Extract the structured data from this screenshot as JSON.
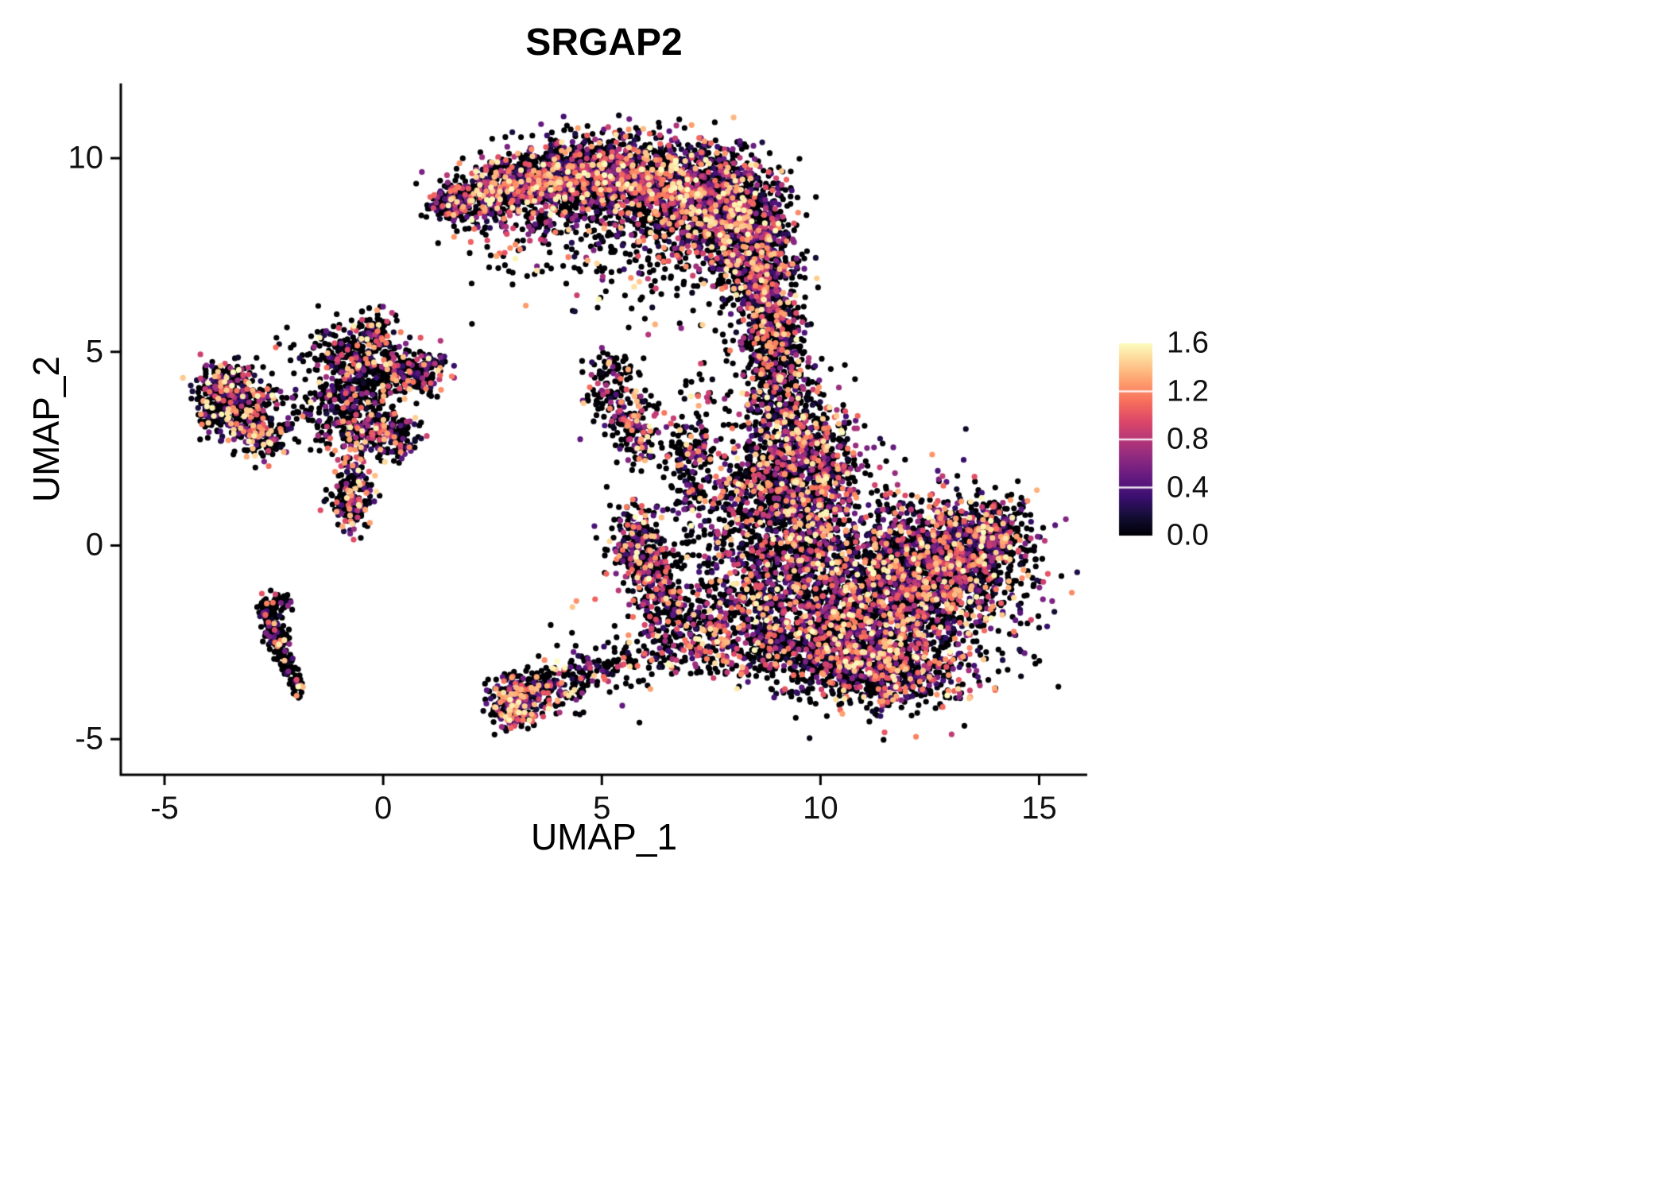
{
  "chart_data": {
    "type": "scatter",
    "title": "SRGAP2",
    "xlabel": "UMAP_1",
    "ylabel": "UMAP_2",
    "xlim": [
      -6,
      16.1
    ],
    "ylim": [
      -5.92,
      11.93
    ],
    "grid": false,
    "x_ticks": [
      {
        "label": "-5",
        "value": -5
      },
      {
        "label": "0",
        "value": 0
      },
      {
        "label": "5",
        "value": 5
      },
      {
        "label": "10",
        "value": 10
      },
      {
        "label": "15",
        "value": 15
      }
    ],
    "y_ticks": [
      {
        "label": "-5",
        "value": -5
      },
      {
        "label": "0",
        "value": 0
      },
      {
        "label": "5",
        "value": 5
      },
      {
        "label": "10",
        "value": 10
      }
    ],
    "legend": {
      "position": "right",
      "min": 0,
      "max": 1.6,
      "ticks": [
        {
          "label": "1.6",
          "value": 1.6
        },
        {
          "label": "1.2",
          "value": 1.2
        },
        {
          "label": "0.8",
          "value": 0.8
        },
        {
          "label": "0.4",
          "value": 0.4
        },
        {
          "label": "0.0",
          "value": 0.0
        }
      ],
      "colormap": "magma",
      "stops": [
        "#000004",
        "#140e36",
        "#3b0f70",
        "#641a80",
        "#8c2981",
        "#b73779",
        "#de4968",
        "#f7705c",
        "#fe9f6d",
        "#fecf92",
        "#fcfdbf"
      ]
    },
    "point_radius": 3.6,
    "seed": 42,
    "colors": {
      "background": "#ffffff",
      "axis": "#000000",
      "text": "#111111"
    },
    "clusters": [
      {
        "x": 1.5,
        "y": 8.8,
        "sx": 0.25,
        "sy": 0.2,
        "n": 110,
        "f": 0.45
      },
      {
        "x": 2.2,
        "y": 9.05,
        "sx": 0.45,
        "sy": 0.3,
        "n": 220,
        "f": 0.5
      },
      {
        "x": 3.2,
        "y": 9.35,
        "sx": 0.55,
        "sy": 0.4,
        "n": 380,
        "f": 0.5
      },
      {
        "x": 4.3,
        "y": 9.6,
        "sx": 0.6,
        "sy": 0.45,
        "n": 500,
        "f": 0.5
      },
      {
        "x": 5.5,
        "y": 9.5,
        "sx": 0.7,
        "sy": 0.55,
        "n": 650,
        "f": 0.5
      },
      {
        "x": 6.7,
        "y": 9.2,
        "sx": 0.7,
        "sy": 0.6,
        "n": 750,
        "f": 0.5
      },
      {
        "x": 7.8,
        "y": 8.7,
        "sx": 0.6,
        "sy": 0.7,
        "n": 750,
        "f": 0.5
      },
      {
        "x": 8.5,
        "y": 7.7,
        "sx": 0.45,
        "sy": 0.8,
        "n": 550,
        "f": 0.5
      },
      {
        "x": 8.8,
        "y": 6.5,
        "sx": 0.35,
        "sy": 0.7,
        "n": 320,
        "f": 0.45
      },
      {
        "x": 8.9,
        "y": 5.5,
        "sx": 0.3,
        "sy": 0.5,
        "n": 140,
        "f": 0.4
      },
      {
        "x": 4.6,
        "y": 8.5,
        "sx": 1.3,
        "sy": 0.6,
        "n": 200,
        "f": 0.4
      },
      {
        "x": 2.9,
        "y": 8.0,
        "sx": 0.7,
        "sy": 0.6,
        "n": 80,
        "f": 0.35
      },
      {
        "x": 6.2,
        "y": 7.6,
        "sx": 0.9,
        "sy": 0.6,
        "n": 150,
        "f": 0.45
      },
      {
        "x": 11.3,
        "y": -1.2,
        "sx": 1.5,
        "sy": 1.15,
        "n": 2300,
        "f": 0.5
      },
      {
        "x": 12.9,
        "y": -0.3,
        "sx": 0.85,
        "sy": 0.8,
        "n": 800,
        "f": 0.5
      },
      {
        "x": 13.9,
        "y": 0.3,
        "sx": 0.45,
        "sy": 0.45,
        "n": 260,
        "f": 0.45
      },
      {
        "x": 10.2,
        "y": -2.6,
        "sx": 0.9,
        "sy": 0.6,
        "n": 600,
        "f": 0.5
      },
      {
        "x": 11.6,
        "y": -3.3,
        "sx": 0.9,
        "sy": 0.45,
        "n": 450,
        "f": 0.5
      },
      {
        "x": 9.4,
        "y": 0.7,
        "sx": 0.65,
        "sy": 0.9,
        "n": 550,
        "f": 0.5
      },
      {
        "x": 9.9,
        "y": 2.2,
        "sx": 0.6,
        "sy": 0.7,
        "n": 420,
        "f": 0.5
      },
      {
        "x": 9.1,
        "y": 3.4,
        "sx": 0.5,
        "sy": 0.8,
        "n": 330,
        "f": 0.45
      },
      {
        "x": 9.0,
        "y": 4.9,
        "sx": 0.35,
        "sy": 0.6,
        "n": 160,
        "f": 0.4
      },
      {
        "x": 8.4,
        "y": -1.3,
        "sx": 0.6,
        "sy": 0.9,
        "n": 280,
        "f": 0.45
      },
      {
        "x": 8.0,
        "y": 0.6,
        "sx": 0.5,
        "sy": 0.9,
        "n": 140,
        "f": 0.4
      },
      {
        "x": 8.6,
        "y": 1.8,
        "sx": 0.5,
        "sy": 0.6,
        "n": 200,
        "f": 0.45
      },
      {
        "x": -3.6,
        "y": 4.15,
        "sx": 0.35,
        "sy": 0.3,
        "n": 190,
        "f": 0.45
      },
      {
        "x": -3.05,
        "y": 3.3,
        "sx": 0.4,
        "sy": 0.45,
        "n": 280,
        "f": 0.45
      },
      {
        "x": -3.85,
        "y": 3.5,
        "sx": 0.22,
        "sy": 0.3,
        "n": 100,
        "f": 0.4
      },
      {
        "x": -2.7,
        "y": 2.7,
        "sx": 0.25,
        "sy": 0.2,
        "n": 70,
        "f": 0.35
      },
      {
        "x": -0.45,
        "y": 4.6,
        "sx": 0.5,
        "sy": 0.5,
        "n": 330,
        "f": 0.4
      },
      {
        "x": -0.15,
        "y": 5.5,
        "sx": 0.18,
        "sy": 0.3,
        "n": 70,
        "f": 0.3
      },
      {
        "x": 0.45,
        "y": 4.5,
        "sx": 0.4,
        "sy": 0.3,
        "n": 140,
        "f": 0.45
      },
      {
        "x": 0.95,
        "y": 4.5,
        "sx": 0.25,
        "sy": 0.25,
        "n": 90,
        "f": 0.5
      },
      {
        "x": -0.9,
        "y": 3.5,
        "sx": 0.45,
        "sy": 0.45,
        "n": 150,
        "f": 0.35
      },
      {
        "x": -0.25,
        "y": 2.95,
        "sx": 0.5,
        "sy": 0.3,
        "n": 130,
        "f": 0.4
      },
      {
        "x": 0.2,
        "y": 2.8,
        "sx": 0.3,
        "sy": 0.3,
        "n": 100,
        "f": 0.45
      },
      {
        "x": -0.7,
        "y": 1.7,
        "sx": 0.22,
        "sy": 0.5,
        "n": 120,
        "f": 0.5
      },
      {
        "x": -0.75,
        "y": 0.95,
        "sx": 0.2,
        "sy": 0.25,
        "n": 90,
        "f": 0.5
      },
      {
        "x": -1.6,
        "y": 3.9,
        "sx": 0.6,
        "sy": 0.8,
        "n": 70,
        "f": 0.3
      },
      {
        "x": -1.1,
        "y": 5.1,
        "sx": 0.5,
        "sy": 0.4,
        "n": 50,
        "f": 0.3
      },
      {
        "x": -2.65,
        "y": -1.6,
        "sx": 0.12,
        "sy": 0.2,
        "n": 55,
        "f": 0.15
      },
      {
        "x": -2.5,
        "y": -2.1,
        "sx": 0.12,
        "sy": 0.2,
        "n": 65,
        "f": 0.15
      },
      {
        "x": -2.35,
        "y": -2.6,
        "sx": 0.12,
        "sy": 0.2,
        "n": 55,
        "f": 0.15
      },
      {
        "x": -2.2,
        "y": -3.1,
        "sx": 0.1,
        "sy": 0.2,
        "n": 45,
        "f": 0.15
      },
      {
        "x": -2.0,
        "y": -3.55,
        "sx": 0.1,
        "sy": 0.18,
        "n": 35,
        "f": 0.15
      },
      {
        "x": -2.3,
        "y": -1.4,
        "sx": 0.15,
        "sy": 0.12,
        "n": 30,
        "f": 0.2
      },
      {
        "x": 3.0,
        "y": -4.1,
        "sx": 0.28,
        "sy": 0.35,
        "n": 260,
        "f": 0.55
      },
      {
        "x": 3.5,
        "y": -3.75,
        "sx": 0.35,
        "sy": 0.25,
        "n": 130,
        "f": 0.5
      },
      {
        "x": 4.3,
        "y": -3.5,
        "sx": 0.5,
        "sy": 0.28,
        "n": 80,
        "f": 0.4
      },
      {
        "x": 5.3,
        "y": -3.1,
        "sx": 0.6,
        "sy": 0.3,
        "n": 80,
        "f": 0.4
      },
      {
        "x": 6.3,
        "y": -2.7,
        "sx": 0.5,
        "sy": 0.3,
        "n": 70,
        "f": 0.4
      },
      {
        "x": 5.25,
        "y": 4.6,
        "sx": 0.3,
        "sy": 0.25,
        "n": 60,
        "f": 0.25
      },
      {
        "x": 5.0,
        "y": 3.9,
        "sx": 0.22,
        "sy": 0.18,
        "n": 35,
        "f": 0.3
      },
      {
        "x": 5.6,
        "y": 3.3,
        "sx": 0.3,
        "sy": 0.4,
        "n": 130,
        "f": 0.5
      },
      {
        "x": 5.85,
        "y": 2.6,
        "sx": 0.2,
        "sy": 0.3,
        "n": 55,
        "f": 0.4
      },
      {
        "x": 7.0,
        "y": 1.5,
        "sx": 0.25,
        "sy": 0.8,
        "n": 110,
        "f": 0.35
      },
      {
        "x": 6.95,
        "y": 2.6,
        "sx": 0.3,
        "sy": 0.4,
        "n": 70,
        "f": 0.35
      },
      {
        "x": 5.8,
        "y": 0.1,
        "sx": 0.35,
        "sy": 0.5,
        "n": 210,
        "f": 0.5
      },
      {
        "x": 6.15,
        "y": -0.7,
        "sx": 0.3,
        "sy": 0.4,
        "n": 140,
        "f": 0.5
      },
      {
        "x": 6.5,
        "y": -1.5,
        "sx": 0.4,
        "sy": 0.4,
        "n": 130,
        "f": 0.45
      },
      {
        "x": 7.1,
        "y": -2.1,
        "sx": 0.45,
        "sy": 0.4,
        "n": 130,
        "f": 0.45
      },
      {
        "x": 7.8,
        "y": -2.8,
        "sx": 0.5,
        "sy": 0.35,
        "n": 110,
        "f": 0.45
      },
      {
        "x": 5.5,
        "y": 6.8,
        "sx": 1.6,
        "sy": 0.9,
        "n": 45,
        "f": 0.3
      },
      {
        "x": 8.6,
        "y": 4.6,
        "sx": 0.8,
        "sy": 0.9,
        "n": 60,
        "f": 0.35
      },
      {
        "x": 7.3,
        "y": 4.0,
        "sx": 0.8,
        "sy": 0.8,
        "n": 35,
        "f": 0.3
      },
      {
        "x": 4.5,
        "y": -1.5,
        "sx": 1.0,
        "sy": 1.0,
        "n": 12,
        "f": 0.3
      }
    ]
  }
}
